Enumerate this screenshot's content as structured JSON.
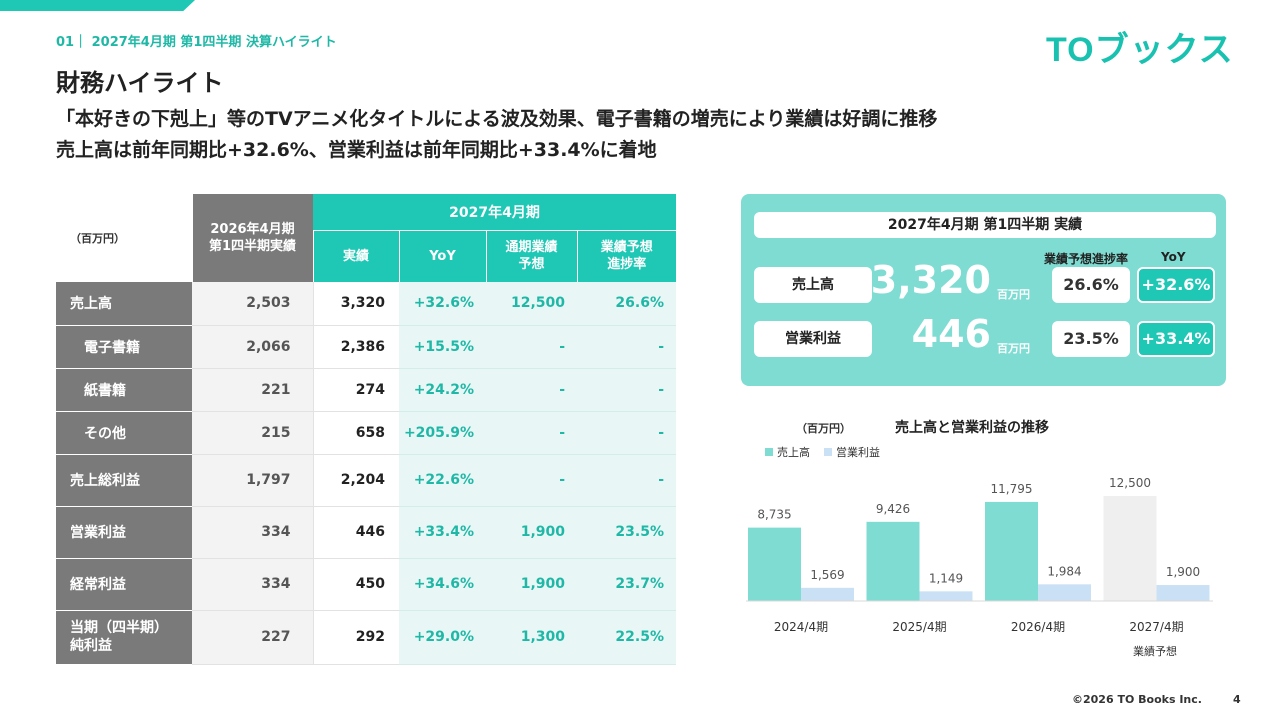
{
  "header": {
    "section_label": "01｜ 2027年4月期 第1四半期 決算ハイライト",
    "logo_text": "TOブックス",
    "page_title": "財務ハイライト",
    "subtitle_line1": "「本好きの下剋上」等のTVアニメ化タイトルによる波及効果、電子書籍の増売により業績は好調に推移",
    "subtitle_line2": "売上高は前年同期比+32.6%、営業利益は前年同期比+33.4%に着地"
  },
  "colors": {
    "accent": "#1fc7b5",
    "accent_light": "#7fdcd3",
    "gray": "#7a7a7a",
    "op_bar": "#c9e0f5",
    "forecast_bar": "#efefef"
  },
  "table": {
    "unit": "（百万円）",
    "prev_header": "2026年4月期\n第1四半期実績",
    "period_header": "2027年4月期",
    "col_headers": [
      "実績",
      "YoY",
      "通期業績\n予想",
      "業績予想\n進捗率"
    ],
    "rows": [
      {
        "label": "売上高",
        "prev": "2,503",
        "actual": "3,320",
        "yoy": "+32.6%",
        "forecast": "12,500",
        "progress": "26.6%"
      },
      {
        "label": "電子書籍",
        "prev": "2,066",
        "actual": "2,386",
        "yoy": "+15.5%",
        "forecast": "-",
        "progress": "-"
      },
      {
        "label": "紙書籍",
        "prev": "221",
        "actual": "274",
        "yoy": "+24.2%",
        "forecast": "-",
        "progress": "-"
      },
      {
        "label": "その他",
        "prev": "215",
        "actual": "658",
        "yoy": "+205.9%",
        "forecast": "-",
        "progress": "-"
      },
      {
        "label": "売上総利益",
        "prev": "1,797",
        "actual": "2,204",
        "yoy": "+22.6%",
        "forecast": "-",
        "progress": "-"
      },
      {
        "label": "営業利益",
        "prev": "334",
        "actual": "446",
        "yoy": "+33.4%",
        "forecast": "1,900",
        "progress": "23.5%"
      },
      {
        "label": "経常利益",
        "prev": "334",
        "actual": "450",
        "yoy": "+34.6%",
        "forecast": "1,900",
        "progress": "23.7%"
      },
      {
        "label": "当期（四半期）\n純利益",
        "prev": "227",
        "actual": "292",
        "yoy": "+29.0%",
        "forecast": "1,300",
        "progress": "22.5%"
      }
    ]
  },
  "kpi": {
    "title": "2027年4月期 第1四半期 実績",
    "progress_header": "業績予想進捗率",
    "yoy_header": "YoY",
    "unit": "百万円",
    "items": [
      {
        "label": "売上高",
        "value": "3,320",
        "progress": "26.6%",
        "yoy": "+32.6%"
      },
      {
        "label": "営業利益",
        "value": "446",
        "progress": "23.5%",
        "yoy": "+33.4%"
      }
    ]
  },
  "chart_data": {
    "type": "bar",
    "title": "売上高と営業利益の推移",
    "unit_label": "（百万円）",
    "categories": [
      "2024/4期",
      "2025/4期",
      "2026/4期",
      "2027/4期"
    ],
    "category_note": "業績予想",
    "series": [
      {
        "name": "売上高",
        "values": [
          8735,
          9426,
          11795,
          12500
        ],
        "labels": [
          "8,735",
          "9,426",
          "11,795",
          "12,500"
        ]
      },
      {
        "name": "営業利益",
        "values": [
          1569,
          1149,
          1984,
          1900
        ],
        "labels": [
          "1,569",
          "1,149",
          "1,984",
          "1,900"
        ]
      }
    ],
    "legend_position": "top-left",
    "grid": false
  },
  "footer": {
    "copyright": "©2026 TO Books Inc.",
    "page_number": "4"
  }
}
